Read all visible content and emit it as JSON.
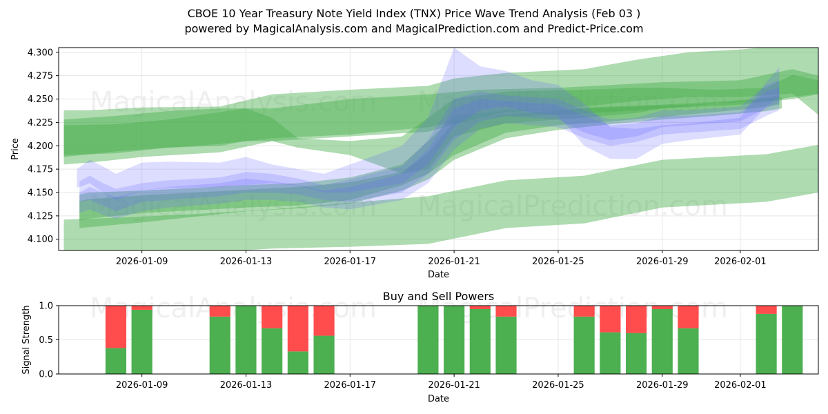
{
  "header": {
    "title": "CBOE 10 Year Treasury Note Yield Index (TNX) Price Wave Trend Analysis (Feb 03 )",
    "subtitle": "powered by MagicalAnalysis.com and MagicalPrediction.com and Predict-Price.com"
  },
  "watermarks": [
    "MagicalAnalysis.com",
    "MagicalPrediction.com"
  ],
  "colors": {
    "green_band": "#4caf50",
    "blue_band": "#6666ff",
    "buy": "#4caf50",
    "sell": "#ff4c4c"
  },
  "chart_data": [
    {
      "type": "area",
      "title": "",
      "xlabel": "Date",
      "ylabel": "Price",
      "x_range_days": [
        -3.2,
        26
      ],
      "ylim": [
        4.088,
        4.305
      ],
      "x_ticks": [
        {
          "day": 0,
          "label": "2026-01-09"
        },
        {
          "day": 4,
          "label": "2026-01-13"
        },
        {
          "day": 8,
          "label": "2026-01-17"
        },
        {
          "day": 12,
          "label": "2026-01-21"
        },
        {
          "day": 16,
          "label": "2026-01-25"
        },
        {
          "day": 20,
          "label": "2026-01-29"
        },
        {
          "day": 23,
          "label": "2026-02-01"
        }
      ],
      "y_ticks": [
        4.1,
        4.125,
        4.15,
        4.175,
        4.2,
        4.225,
        4.25,
        4.275,
        4.3
      ],
      "green_bands": [
        {
          "x": [
            -3,
            -2,
            0,
            3,
            5,
            8,
            11,
            12,
            14,
            17,
            19,
            21,
            23,
            25,
            26
          ],
          "upper": [
            4.238,
            4.238,
            4.241,
            4.242,
            4.255,
            4.26,
            4.264,
            4.272,
            4.278,
            4.282,
            4.292,
            4.3,
            4.303,
            4.308,
            4.31
          ],
          "lower": [
            4.18,
            4.182,
            4.188,
            4.193,
            4.205,
            4.21,
            4.215,
            4.223,
            4.236,
            4.242,
            4.248,
            4.252,
            4.252,
            4.256,
            4.233
          ]
        },
        {
          "x": [
            -3,
            -1,
            1,
            3,
            5,
            8,
            11,
            13,
            16,
            18,
            20,
            23,
            25,
            26
          ],
          "upper": [
            4.228,
            4.232,
            4.237,
            4.24,
            4.24,
            4.25,
            4.255,
            4.26,
            4.262,
            4.265,
            4.268,
            4.27,
            4.282,
            4.275
          ],
          "lower": [
            4.188,
            4.194,
            4.198,
            4.202,
            4.208,
            4.212,
            4.22,
            4.23,
            4.233,
            4.236,
            4.24,
            4.244,
            4.25,
            4.255
          ]
        },
        {
          "x": [
            -3,
            -1,
            1,
            3,
            4,
            5,
            6,
            8,
            10,
            11,
            12,
            14,
            17,
            19,
            20,
            22,
            24,
            25,
            26
          ],
          "upper": [
            4.222,
            4.223,
            4.228,
            4.236,
            4.24,
            4.23,
            4.208,
            4.205,
            4.21,
            4.23,
            4.25,
            4.258,
            4.26,
            4.262,
            4.262,
            4.26,
            4.262,
            4.276,
            4.27
          ],
          "lower": [
            4.19,
            4.192,
            4.198,
            4.2,
            4.205,
            4.205,
            4.198,
            4.19,
            4.17,
            4.175,
            4.21,
            4.224,
            4.23,
            4.235,
            4.24,
            4.245,
            4.248,
            4.252,
            4.256
          ]
        },
        {
          "x": [
            -2.4,
            -2,
            0,
            2,
            4,
            6,
            8,
            10,
            11,
            12,
            14,
            16,
            18,
            20,
            22,
            23.5,
            24.5
          ],
          "upper": [
            4.148,
            4.15,
            4.152,
            4.155,
            4.158,
            4.16,
            4.166,
            4.18,
            4.205,
            4.232,
            4.238,
            4.24,
            4.242,
            4.244,
            4.247,
            4.25,
            4.254
          ],
          "lower": [
            4.12,
            4.122,
            4.128,
            4.131,
            4.134,
            4.136,
            4.142,
            4.158,
            4.17,
            4.19,
            4.214,
            4.222,
            4.226,
            4.231,
            4.236,
            4.24,
            4.244
          ]
        },
        {
          "x": [
            -2.4,
            -2,
            0,
            2,
            4,
            6,
            8,
            10,
            11,
            12,
            14,
            16,
            18,
            20,
            22,
            24,
            24.6
          ],
          "upper": [
            4.141,
            4.143,
            4.147,
            4.15,
            4.153,
            4.156,
            4.161,
            4.172,
            4.192,
            4.226,
            4.233,
            4.238,
            4.241,
            4.243,
            4.245,
            4.25,
            4.252
          ],
          "lower": [
            4.112,
            4.113,
            4.118,
            4.124,
            4.13,
            4.133,
            4.138,
            4.152,
            4.164,
            4.185,
            4.208,
            4.217,
            4.223,
            4.228,
            4.232,
            4.237,
            4.24
          ]
        },
        {
          "x": [
            -3,
            -1,
            2,
            5,
            8,
            11,
            14,
            17,
            20,
            22,
            24,
            26
          ],
          "upper": [
            4.121,
            4.123,
            4.127,
            4.132,
            4.139,
            4.146,
            4.163,
            4.168,
            4.185,
            4.188,
            4.191,
            4.201
          ],
          "lower": [
            4.08,
            4.082,
            4.085,
            4.09,
            4.092,
            4.095,
            4.112,
            4.117,
            4.134,
            4.137,
            4.14,
            4.15
          ]
        }
      ],
      "blue_bands": [
        {
          "x": [
            -2.5,
            -2,
            -1.5,
            -1,
            0,
            1,
            3,
            4,
            5,
            6,
            7,
            8,
            10,
            11,
            12,
            13,
            14,
            15,
            16,
            17,
            18,
            19,
            20,
            21,
            23,
            24,
            24.5
          ],
          "upper": [
            4.175,
            4.185,
            4.178,
            4.17,
            4.182,
            4.183,
            4.182,
            4.188,
            4.18,
            4.175,
            4.17,
            4.18,
            4.2,
            4.23,
            4.305,
            4.285,
            4.28,
            4.27,
            4.265,
            4.245,
            4.22,
            4.218,
            4.222,
            4.224,
            4.23,
            4.268,
            4.284
          ],
          "lower": [
            4.155,
            4.16,
            4.15,
            4.142,
            4.152,
            4.155,
            4.156,
            4.158,
            4.16,
            4.157,
            4.15,
            4.15,
            4.16,
            4.18,
            4.22,
            4.238,
            4.242,
            4.235,
            4.232,
            4.2,
            4.186,
            4.186,
            4.202,
            4.206,
            4.212,
            4.242,
            4.252
          ]
        },
        {
          "x": [
            -2.4,
            -2,
            -1.5,
            -1,
            0,
            1,
            3,
            4,
            5,
            6,
            7,
            8,
            10,
            11,
            12,
            13,
            14,
            15,
            16,
            17,
            18,
            19,
            20,
            21,
            23,
            24,
            24.5
          ],
          "upper": [
            4.162,
            4.168,
            4.16,
            4.154,
            4.16,
            4.163,
            4.166,
            4.172,
            4.17,
            4.165,
            4.158,
            4.164,
            4.178,
            4.206,
            4.25,
            4.258,
            4.254,
            4.252,
            4.25,
            4.238,
            4.228,
            4.23,
            4.238,
            4.238,
            4.242,
            4.265,
            4.27
          ],
          "lower": [
            4.14,
            4.142,
            4.136,
            4.13,
            4.14,
            4.142,
            4.146,
            4.15,
            4.15,
            4.148,
            4.142,
            4.14,
            4.15,
            4.17,
            4.206,
            4.226,
            4.232,
            4.23,
            4.228,
            4.214,
            4.206,
            4.21,
            4.22,
            4.222,
            4.226,
            4.24,
            4.246
          ]
        },
        {
          "x": [
            -2.4,
            -2,
            -1.5,
            -1,
            0,
            1,
            3,
            4,
            5,
            6,
            7,
            8,
            10,
            11,
            12,
            13,
            14,
            15,
            16,
            17,
            18,
            19,
            20,
            21,
            23,
            24,
            24.5
          ],
          "upper": [
            4.15,
            4.156,
            4.15,
            4.145,
            4.152,
            4.156,
            4.16,
            4.165,
            4.162,
            4.158,
            4.152,
            4.156,
            4.17,
            4.196,
            4.24,
            4.25,
            4.248,
            4.246,
            4.244,
            4.232,
            4.222,
            4.224,
            4.232,
            4.232,
            4.236,
            4.258,
            4.262
          ],
          "lower": [
            4.128,
            4.132,
            4.126,
            4.122,
            4.13,
            4.134,
            4.138,
            4.142,
            4.142,
            4.14,
            4.134,
            4.132,
            4.142,
            4.16,
            4.196,
            4.218,
            4.224,
            4.222,
            4.22,
            4.208,
            4.2,
            4.204,
            4.212,
            4.214,
            4.218,
            4.232,
            4.238
          ]
        }
      ]
    },
    {
      "type": "bar",
      "title": "Buy and Sell Powers",
      "xlabel": "Date",
      "ylabel": "Signal Strength",
      "ylim": [
        0,
        1.0
      ],
      "y_ticks": [
        0.0,
        0.5,
        1.0
      ],
      "y_tick_labels": [
        "0.0",
        "0.5",
        "1.0"
      ],
      "x_range_days": [
        -3.2,
        26
      ],
      "x_ticks": [
        {
          "day": 0,
          "label": "2026-01-09"
        },
        {
          "day": 4,
          "label": "2026-01-13"
        },
        {
          "day": 8,
          "label": "2026-01-17"
        },
        {
          "day": 12,
          "label": "2026-01-21"
        },
        {
          "day": 16,
          "label": "2026-01-25"
        },
        {
          "day": 20,
          "label": "2026-01-29"
        },
        {
          "day": 23,
          "label": "2026-02-01"
        }
      ],
      "days": [
        -1,
        0,
        3,
        4,
        5,
        6,
        7,
        11,
        12,
        13,
        14,
        17,
        18,
        19,
        20,
        21,
        24,
        25
      ],
      "buy": [
        0.38,
        0.94,
        0.84,
        1.0,
        0.67,
        0.33,
        0.56,
        1.0,
        1.0,
        0.95,
        0.84,
        0.84,
        0.61,
        0.6,
        0.95,
        0.67,
        0.88,
        1.0
      ],
      "sell": [
        0.62,
        0.06,
        0.16,
        0.0,
        0.33,
        0.67,
        0.44,
        0.0,
        0.0,
        0.05,
        0.16,
        0.16,
        0.39,
        0.4,
        0.05,
        0.33,
        0.12,
        0.0
      ]
    }
  ]
}
